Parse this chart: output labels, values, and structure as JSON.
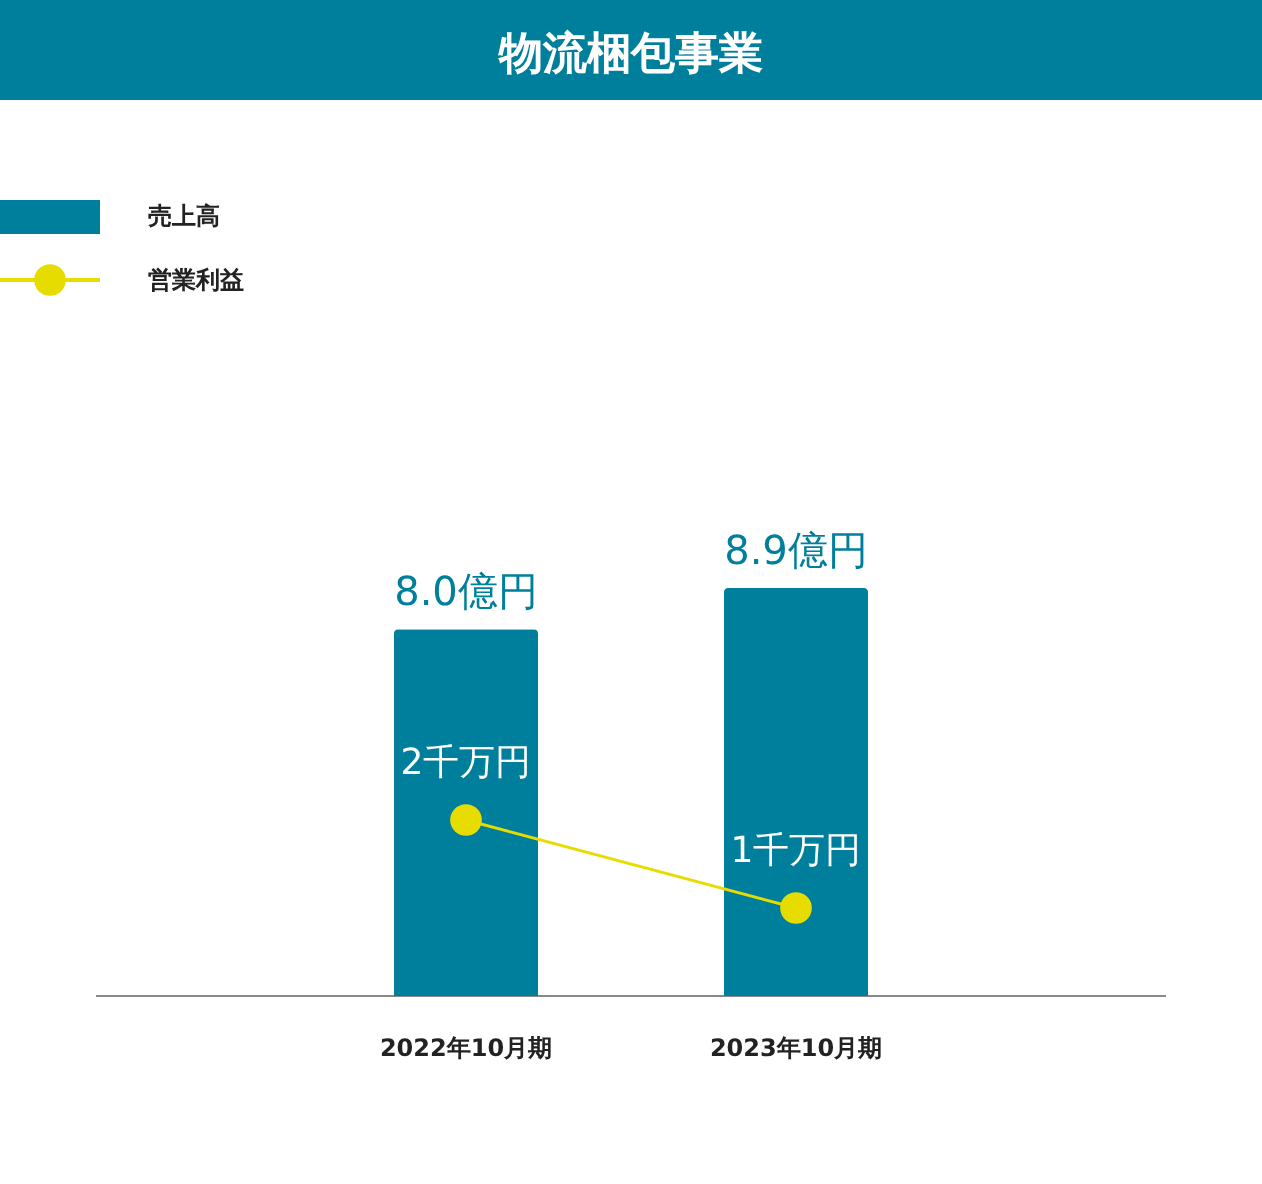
{
  "chart_data": {
    "type": "bar",
    "title": "物流梱包事業",
    "categories": [
      "2022年10月期",
      "2023年10月期"
    ],
    "series": [
      {
        "name": "売上高",
        "color": "#007f9c",
        "values": [
          8.0,
          8.9
        ],
        "value_labels": [
          "8.0億円",
          "8.9億円"
        ]
      },
      {
        "name": "営業利益",
        "type": "line",
        "axis": "y2",
        "color": "#e6dc00",
        "values": [
          2,
          1
        ],
        "value_labels": [
          "2千万円",
          "1千万円"
        ],
        "marker": "circle"
      }
    ],
    "legend": "top left"
  }
}
